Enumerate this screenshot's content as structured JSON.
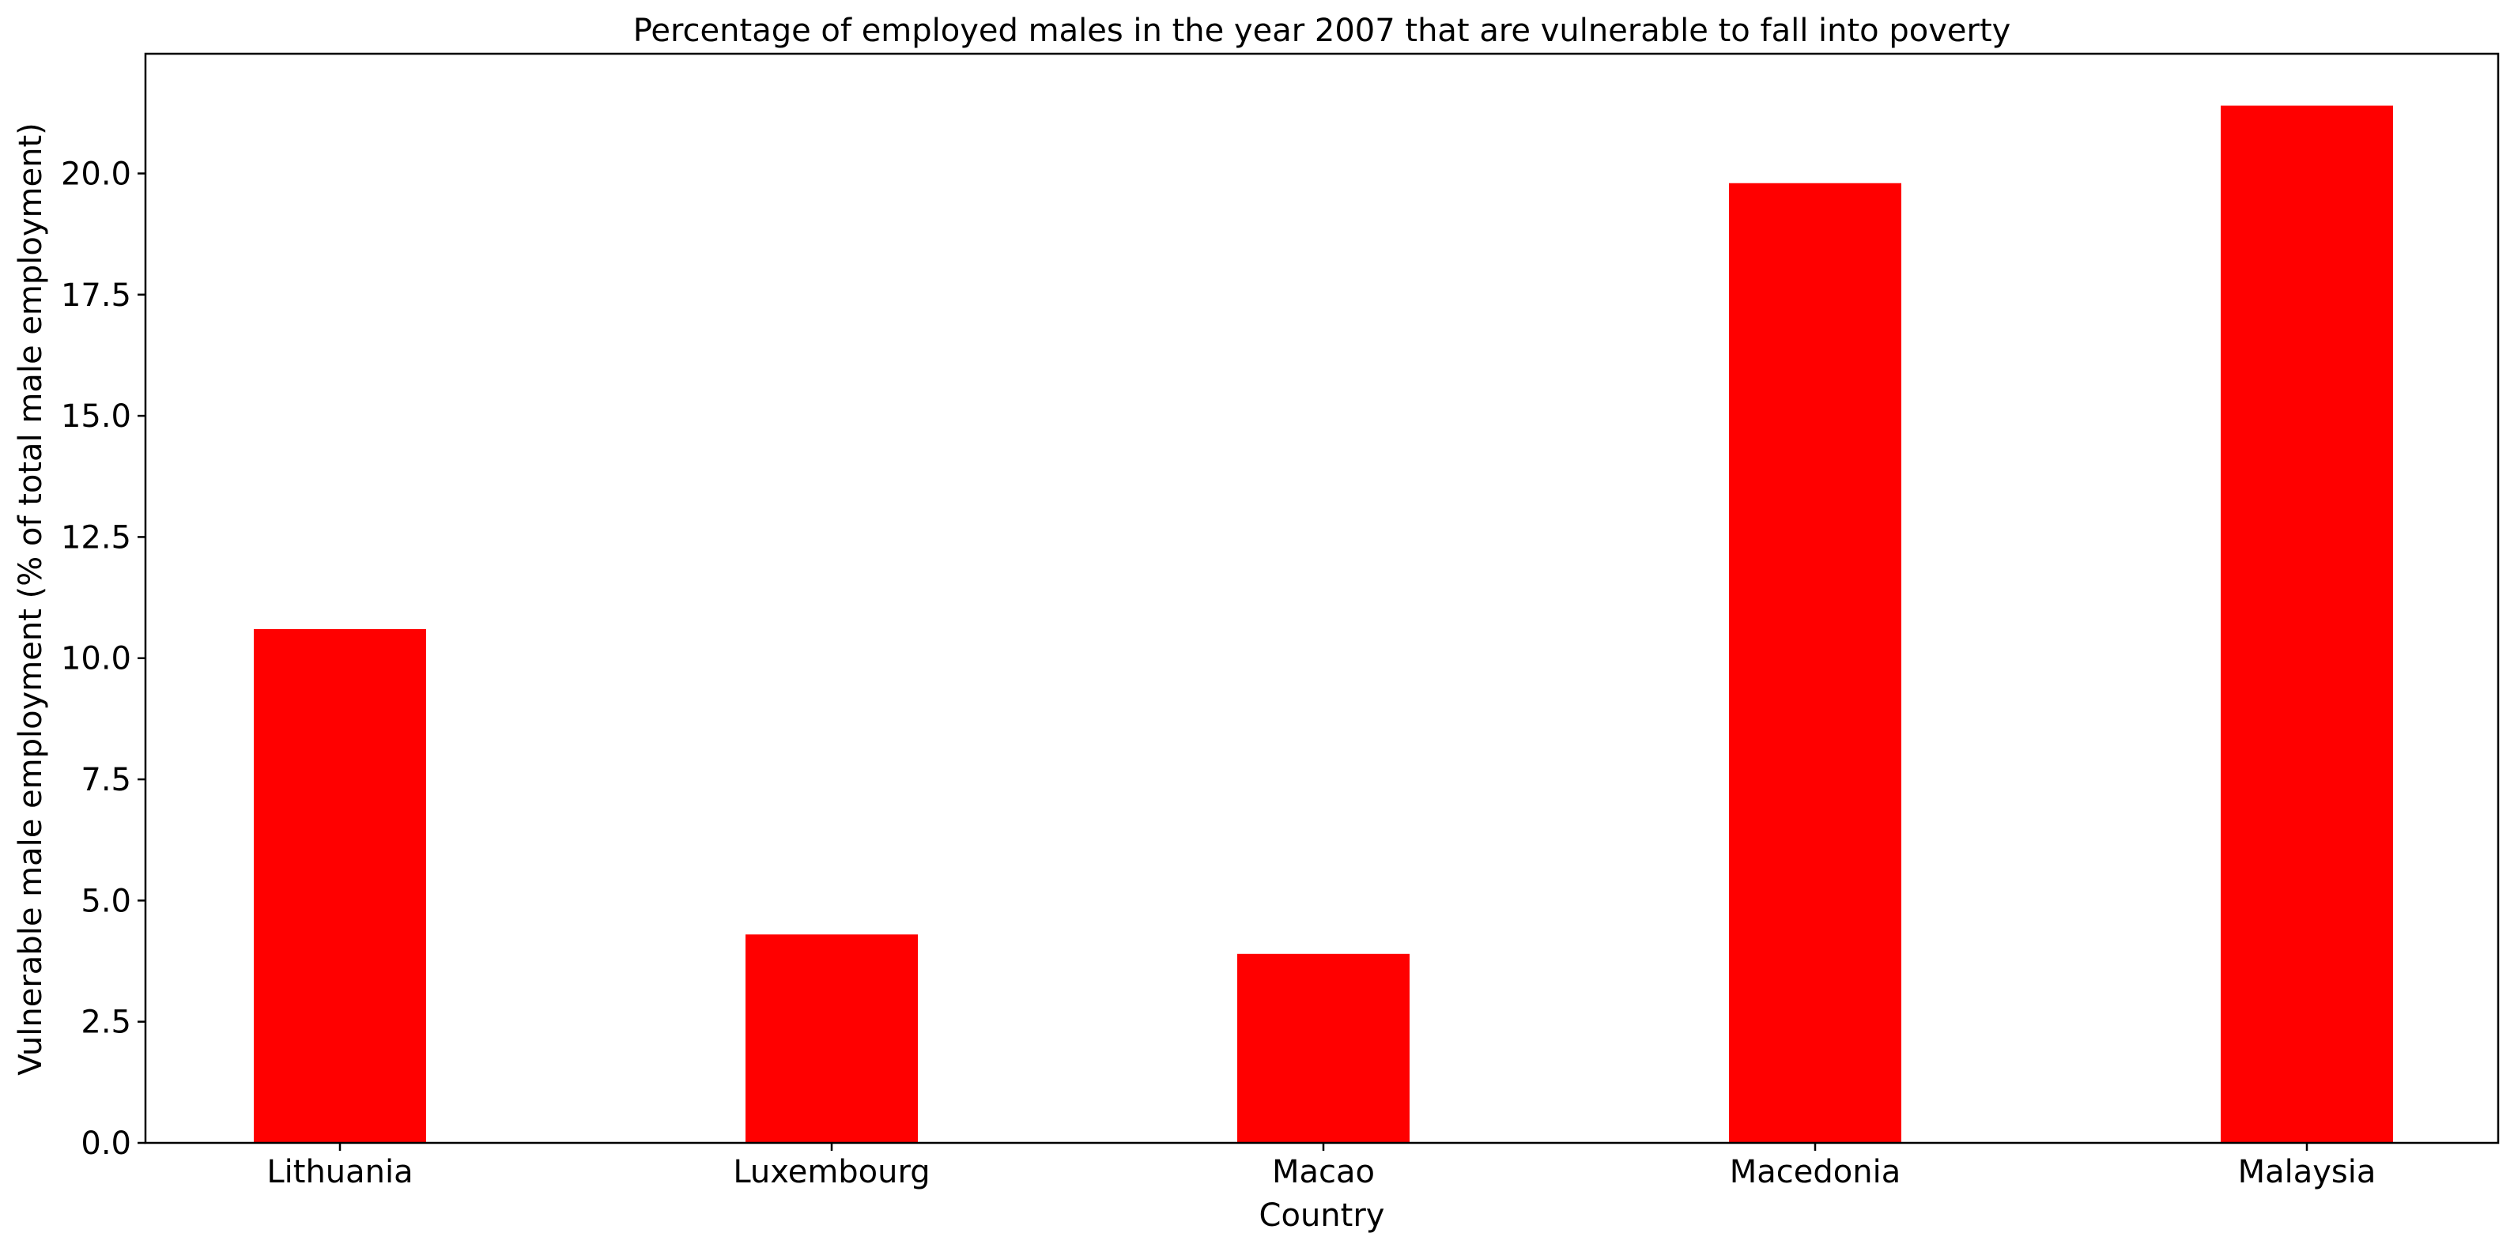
{
  "chart_data": {
    "type": "bar",
    "title": "Percentage of employed males in the year 2007 that are vulnerable to fall into poverty",
    "xlabel": "Country",
    "ylabel": "Vulnerable male employment (% of total male employment)",
    "categories": [
      "Lithuania",
      "Luxembourg",
      "Macao",
      "Macedonia",
      "Malaysia"
    ],
    "values": [
      10.6,
      4.3,
      3.9,
      19.8,
      21.4
    ],
    "ylim": [
      0,
      22.47
    ],
    "yticks": [
      0,
      2.5,
      5,
      7.5,
      10,
      12.5,
      15,
      17.5,
      20
    ],
    "ytick_labels": [
      "0.0",
      "2.5",
      "5.0",
      "7.5",
      "10.0",
      "12.5",
      "15.0",
      "17.5",
      "20.0"
    ],
    "bar_color": "#ff0000",
    "grid": false,
    "legend": "none"
  }
}
